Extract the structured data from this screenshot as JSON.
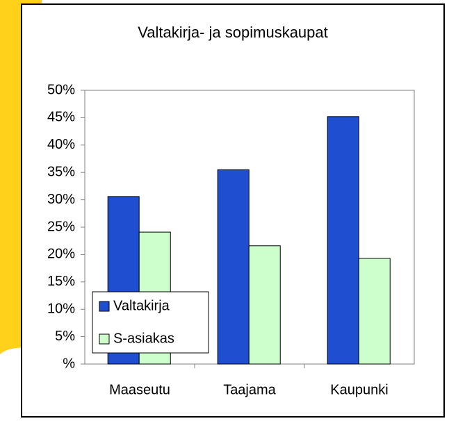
{
  "chart_data": {
    "type": "bar",
    "title": "Valtakirja- ja sopimuskaupat",
    "categories": [
      "Maaseutu",
      "Taajama",
      "Kaupunki"
    ],
    "series": [
      {
        "name": "Valtakirja",
        "color": "#1f4fd0",
        "values": [
          30.6,
          35.5,
          45.2
        ]
      },
      {
        "name": "S-asiakas",
        "color": "#ccffcc",
        "values": [
          24.1,
          21.6,
          19.3
        ]
      }
    ],
    "ylim": [
      0,
      50
    ],
    "yticks": [
      {
        "value": 0,
        "label": "%"
      },
      {
        "value": 5,
        "label": "5%"
      },
      {
        "value": 10,
        "label": "10%"
      },
      {
        "value": 15,
        "label": "15%"
      },
      {
        "value": 20,
        "label": "20%"
      },
      {
        "value": 25,
        "label": "25%"
      },
      {
        "value": 30,
        "label": "30%"
      },
      {
        "value": 35,
        "label": "35%"
      },
      {
        "value": 40,
        "label": "40%"
      },
      {
        "value": 45,
        "label": "45%"
      },
      {
        "value": 50,
        "label": "50%"
      }
    ],
    "grid": false,
    "legend": "lower left"
  }
}
